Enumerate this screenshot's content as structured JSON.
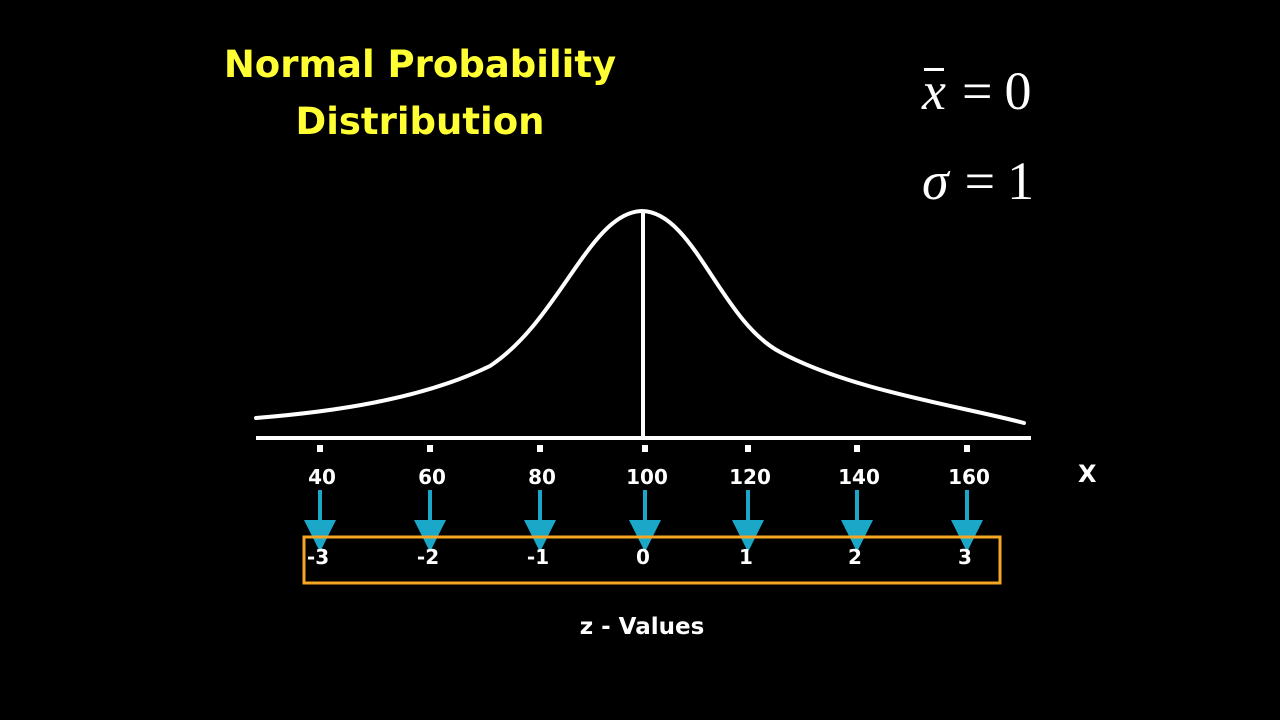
{
  "title": {
    "line1": "Normal Probability",
    "line2": "Distribution"
  },
  "stats": {
    "mean_symbol": "x",
    "mean_value": "0",
    "sd_symbol": "σ",
    "sd_value": "1"
  },
  "x_axis": {
    "letter": "X",
    "ticks": [
      "40",
      "60",
      "80",
      "100",
      "120",
      "140",
      "160"
    ]
  },
  "z_scale": {
    "values": [
      "-3",
      "-2",
      "-1",
      "0",
      "1",
      "2",
      "3"
    ],
    "caption": "z - Values"
  },
  "colors": {
    "background": "#000000",
    "title": "#ffff33",
    "curve": "#ffffff",
    "arrow": "#1ba8c8",
    "z_box": "#f5a623"
  }
}
